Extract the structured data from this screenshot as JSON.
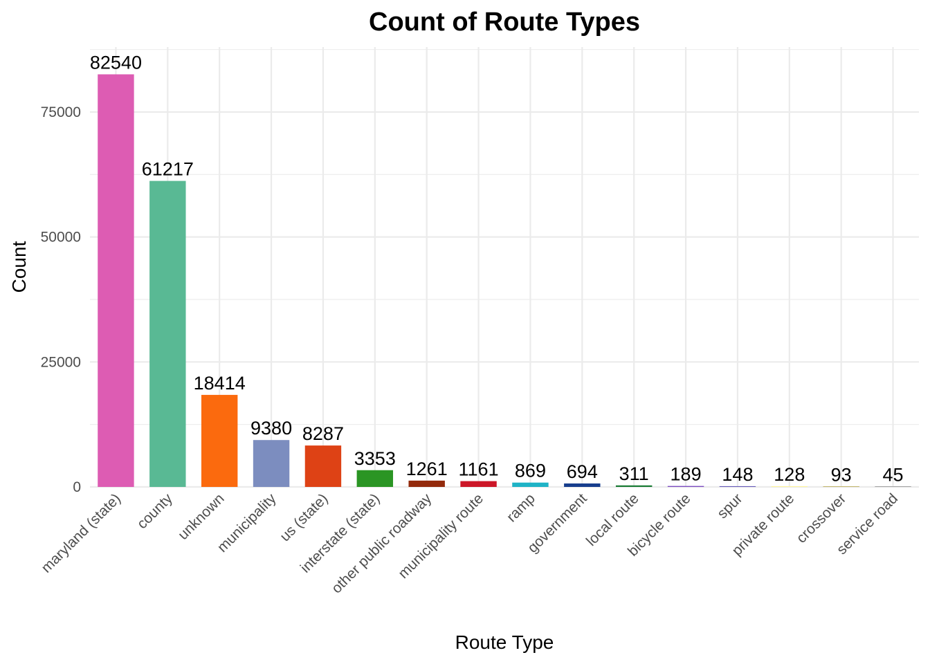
{
  "chart_data": {
    "type": "bar",
    "title": "Count of Route Types",
    "xlabel": "Route Type",
    "ylabel": "Count",
    "ylim": [
      0,
      88000
    ],
    "y_ticks": [
      0,
      25000,
      50000,
      75000
    ],
    "grid": true,
    "legend": "none",
    "categories": [
      "maryland (state)",
      "county",
      "unknown",
      "municipality",
      "us (state)",
      "interstate (state)",
      "other public roadway",
      "municipality route",
      "ramp",
      "government",
      "local route",
      "bicycle route",
      "spur",
      "private route",
      "crossover",
      "service road"
    ],
    "values": [
      82540,
      61217,
      18414,
      9380,
      8287,
      3353,
      1261,
      1161,
      869,
      694,
      311,
      189,
      148,
      128,
      93,
      45
    ],
    "colors": [
      "#dd5cb3",
      "#59b994",
      "#fb6a0e",
      "#7c8dbf",
      "#de4215",
      "#2b9524",
      "#932a0c",
      "#cc1728",
      "#1fb3c6",
      "#173e8d",
      "#1c7d37",
      "#7b4cc0",
      "#6459b8",
      "#fff59a",
      "#c2b56c",
      "#a3a3a3"
    ]
  }
}
